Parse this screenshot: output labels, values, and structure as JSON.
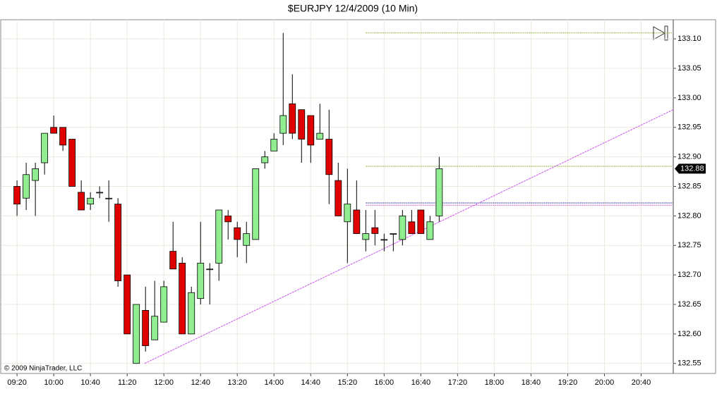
{
  "chart_data": {
    "type": "candlestick",
    "title": "$EURJPY  12/4/2009 (10 Min)",
    "copyright": "© 2009 NinjaTrader, LLC",
    "x": [
      560,
      570,
      580,
      590,
      600,
      610,
      620,
      630,
      640,
      650,
      660,
      670,
      680,
      690,
      700,
      710,
      720,
      730,
      740,
      750,
      760,
      770,
      780,
      790,
      800,
      810,
      820,
      830,
      840,
      850,
      860,
      870,
      880,
      890,
      900,
      910,
      920,
      930,
      940,
      950,
      960,
      970,
      980,
      990,
      1000,
      1010,
      1020
    ],
    "open": [
      132.85,
      132.83,
      132.86,
      132.89,
      132.95,
      132.95,
      132.93,
      132.84,
      132.82,
      132.84,
      132.83,
      132.82,
      132.7,
      132.55,
      132.64,
      132.59,
      132.62,
      132.74,
      132.72,
      132.6,
      132.66,
      132.71,
      132.72,
      132.8,
      132.78,
      132.75,
      132.76,
      132.89,
      132.91,
      132.94,
      132.99,
      132.98,
      132.97,
      132.93,
      132.93,
      132.86,
      132.79,
      132.81,
      132.76,
      132.78,
      132.76,
      132.77,
      132.76,
      132.79,
      132.81,
      132.76,
      132.8
    ],
    "high": [
      132.86,
      132.89,
      132.89,
      132.94,
      132.97,
      132.95,
      132.93,
      132.86,
      132.84,
      132.85,
      132.86,
      132.83,
      132.7,
      132.65,
      132.68,
      132.69,
      132.69,
      132.79,
      132.73,
      132.68,
      132.79,
      132.72,
      132.81,
      132.81,
      132.79,
      132.79,
      132.88,
      132.91,
      132.94,
      133.11,
      133.04,
      132.98,
      132.97,
      132.99,
      132.98,
      132.89,
      132.88,
      132.86,
      132.81,
      132.81,
      132.77,
      132.77,
      132.81,
      132.81,
      132.81,
      132.8,
      132.9
    ],
    "low": [
      132.8,
      132.81,
      132.8,
      132.87,
      132.94,
      132.91,
      132.85,
      132.81,
      132.81,
      132.83,
      132.79,
      132.68,
      132.6,
      132.55,
      132.57,
      132.59,
      132.62,
      132.71,
      132.6,
      132.6,
      132.65,
      132.65,
      132.69,
      132.76,
      132.73,
      132.72,
      132.76,
      132.88,
      132.91,
      132.92,
      132.93,
      132.89,
      132.89,
      132.93,
      132.82,
      132.8,
      132.72,
      132.77,
      132.74,
      132.75,
      132.74,
      132.74,
      132.75,
      132.77,
      132.77,
      132.76,
      132.79
    ],
    "close": [
      132.82,
      132.87,
      132.88,
      132.94,
      132.94,
      132.92,
      132.85,
      132.81,
      132.83,
      132.84,
      132.83,
      132.69,
      132.6,
      132.65,
      132.58,
      132.63,
      132.68,
      132.71,
      132.6,
      132.67,
      132.72,
      132.71,
      132.81,
      132.79,
      132.76,
      132.77,
      132.88,
      132.9,
      132.93,
      132.97,
      132.94,
      132.93,
      132.92,
      132.94,
      132.87,
      132.8,
      132.82,
      132.77,
      132.77,
      132.77,
      132.76,
      132.77,
      132.8,
      132.77,
      132.77,
      132.79,
      132.88
    ],
    "up_color": "#90ee90",
    "down_color": "#e00000",
    "last_price": 132.88,
    "xlim": [
      543,
      1275
    ],
    "ylim": [
      132.533,
      133.13
    ],
    "xticks": [
      {
        "value": 560,
        "label": "09:20"
      },
      {
        "value": 600,
        "label": "10:00"
      },
      {
        "value": 640,
        "label": "10:40"
      },
      {
        "value": 680,
        "label": "11:20"
      },
      {
        "value": 720,
        "label": "12:00"
      },
      {
        "value": 760,
        "label": "12:40"
      },
      {
        "value": 800,
        "label": "13:20"
      },
      {
        "value": 840,
        "label": "14:00"
      },
      {
        "value": 880,
        "label": "14:40"
      },
      {
        "value": 920,
        "label": "15:20"
      },
      {
        "value": 960,
        "label": "16:00"
      },
      {
        "value": 1000,
        "label": "16:40"
      },
      {
        "value": 1040,
        "label": "17:20"
      },
      {
        "value": 1080,
        "label": "18:00"
      },
      {
        "value": 1120,
        "label": "18:40"
      },
      {
        "value": 1160,
        "label": "19:20"
      },
      {
        "value": 1200,
        "label": "20:00"
      },
      {
        "value": 1240,
        "label": "20:40"
      }
    ],
    "yticks": [
      {
        "value": 132.55,
        "label": "132.55"
      },
      {
        "value": 132.6,
        "label": "132.60"
      },
      {
        "value": 132.65,
        "label": "132.65"
      },
      {
        "value": 132.7,
        "label": "132.70"
      },
      {
        "value": 132.75,
        "label": "132.75"
      },
      {
        "value": 132.8,
        "label": "132.80"
      },
      {
        "value": 132.85,
        "label": "132.85"
      },
      {
        "value": 132.9,
        "label": "132.90"
      },
      {
        "value": 132.95,
        "label": "132.95"
      },
      {
        "value": 133.0,
        "label": "133.00"
      },
      {
        "value": 133.05,
        "label": "133.05"
      },
      {
        "value": 133.1,
        "label": "133.10"
      }
    ],
    "grid": true,
    "horizontal_lines": [
      {
        "value": 133.11,
        "from": 940,
        "color": "#8db33a"
      },
      {
        "value": 132.884,
        "from": 940,
        "color": "#8db33a"
      },
      {
        "value": 132.822,
        "from": 940,
        "color": "#3333aa"
      },
      {
        "value": 132.818,
        "from": 940,
        "color": "#cc66cc"
      }
    ],
    "trendline": {
      "x": [
        699,
        1275
      ],
      "y": [
        132.55,
        132.98
      ],
      "color": "#cc55ee"
    }
  }
}
